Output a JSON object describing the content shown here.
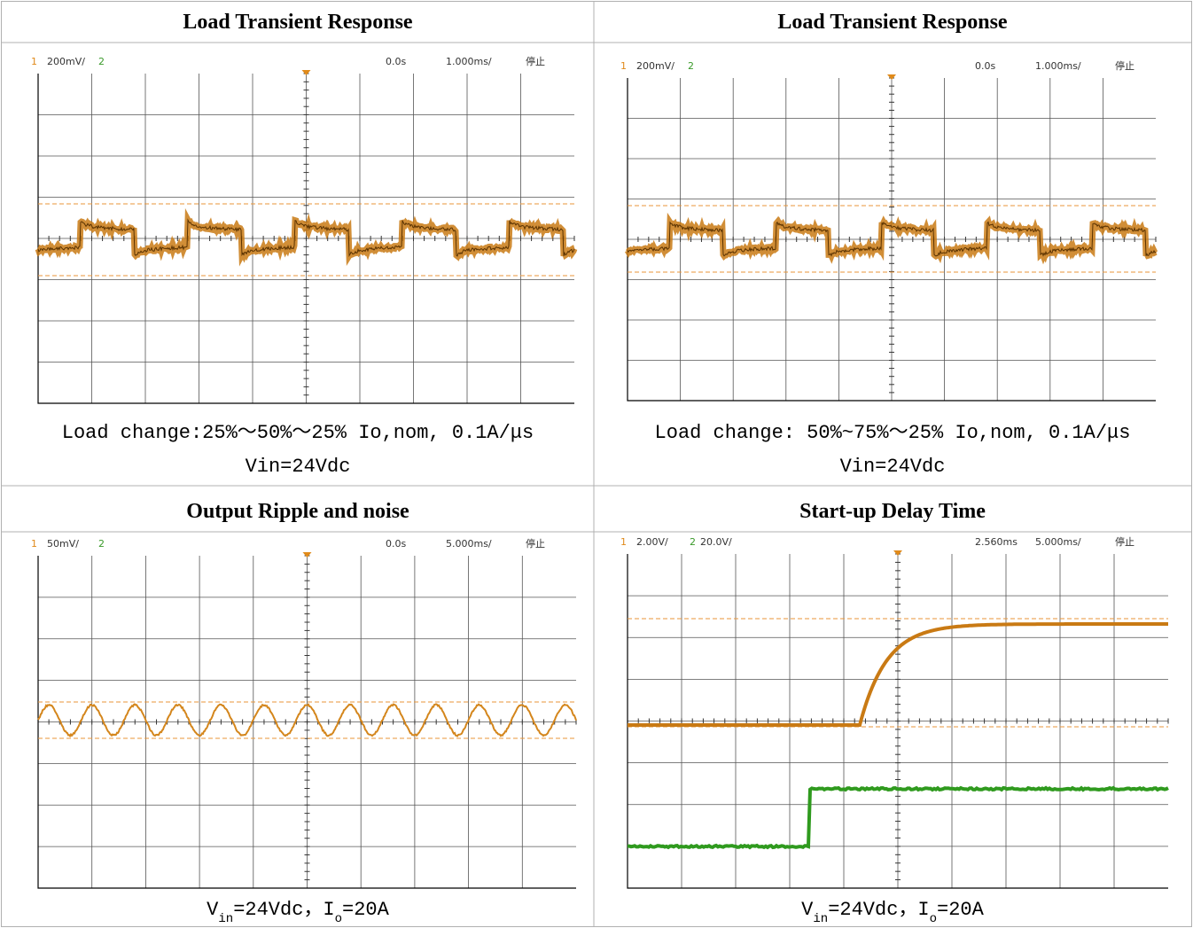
{
  "panels": [
    {
      "title": "Load Transient Response",
      "scope": {
        "ch1": "1",
        "ch1_scale": "200mV/",
        "ch2": "2",
        "time": "0.0s",
        "timebase": "1.000ms/",
        "status": "停止"
      },
      "caption": [
        [
          {
            "text": "Load change:25%～50%～25% Io,nom, 0.1A/μs"
          }
        ],
        [
          {
            "text": "Vin=24Vdc"
          }
        ]
      ]
    },
    {
      "title": "Load Transient Response",
      "scope": {
        "ch1": "1",
        "ch1_scale": "200mV/",
        "ch2": "2",
        "time": "0.0s",
        "timebase": "1.000ms/",
        "status": "停止"
      },
      "caption": [
        [
          {
            "text": "Load change: 50%~75%～25% Io,nom, 0.1A/μs"
          }
        ],
        [
          {
            "text": "Vin=24Vdc"
          }
        ]
      ]
    },
    {
      "title": "Output Ripple and noise",
      "scope": {
        "ch1": "1",
        "ch1_scale": "50mV/",
        "ch2": "2",
        "time": "0.0s",
        "timebase": "5.000ms/",
        "status": "停止"
      },
      "caption": [
        [
          {
            "text": "V"
          },
          {
            "text": "in",
            "sub": true
          },
          {
            "text": "=24Vdc，I"
          },
          {
            "text": "o",
            "sub": true
          },
          {
            "text": "=20A"
          }
        ]
      ]
    },
    {
      "title": "Start-up Delay Time",
      "scope": {
        "ch1": "1",
        "ch1_scale": "2.00V/",
        "ch2": "2",
        "ch2_scale": "20.0V/",
        "time": "2.560ms",
        "timebase": "5.000ms/",
        "status": "停止"
      },
      "caption": [
        [
          {
            "text": "V"
          },
          {
            "text": "in",
            "sub": true
          },
          {
            "text": "=24Vdc，I"
          },
          {
            "text": "o",
            "sub": true
          },
          {
            "text": "=20A"
          }
        ]
      ]
    }
  ]
}
